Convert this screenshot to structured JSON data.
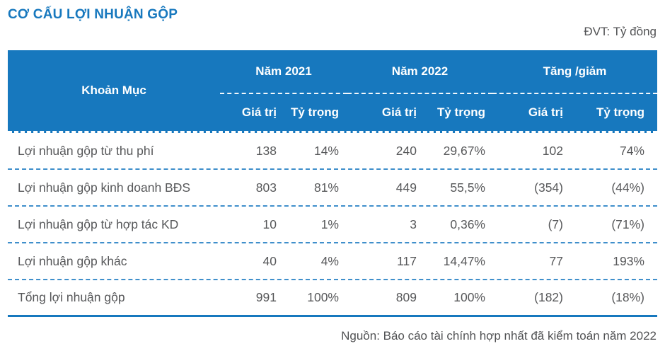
{
  "page": {
    "title": "CƠ CẤU LỢI NHUẬN GỘP",
    "unit_label": "ĐVT: Tỷ đồng",
    "source": "Nguồn: Báo cáo tài chính hợp nhất đã kiểm toán năm 2022"
  },
  "colors": {
    "header_bg": "#1778BE",
    "title_text": "#1778BE",
    "row_divider": "#3F8FCB",
    "bottom_border": "#1778BE",
    "body_text": "#57585A",
    "header_text": "#FFFFFF"
  },
  "table": {
    "header": {
      "item_col": "Khoản Mục",
      "groups": [
        {
          "label": "Năm 2021"
        },
        {
          "label": "Năm 2022"
        },
        {
          "label": "Tăng /giảm"
        }
      ],
      "sub_labels": [
        "Giá trị",
        "Tỷ trọng",
        "Giá trị",
        "Tỷ trọng",
        "Giá trị",
        "Tỷ trọng"
      ]
    },
    "rows": [
      {
        "label": "Lợi nhuận gộp từ thu phí",
        "values": [
          "138",
          "14%",
          "240",
          "29,67%",
          "102",
          "74%"
        ]
      },
      {
        "label": "Lợi nhuận gộp kinh doanh BĐS",
        "values": [
          "803",
          "81%",
          "449",
          "55,5%",
          "(354)",
          "(44%)"
        ]
      },
      {
        "label": "Lợi nhuận gộp từ hợp tác KD",
        "values": [
          "10",
          "1%",
          "3",
          "0,36%",
          "(7)",
          "(71%)"
        ]
      },
      {
        "label": "Lợi nhuận gộp khác",
        "values": [
          "40",
          "4%",
          "117",
          "14,47%",
          "77",
          "193%"
        ]
      },
      {
        "label": "Tổng lợi nhuận gộp",
        "values": [
          "991",
          "100%",
          "809",
          "100%",
          "(182)",
          "(18%)"
        ]
      }
    ]
  },
  "chart_data": {
    "type": "table",
    "title": "CƠ CẤU LỢI NHUẬN GỘP",
    "unit": "Tỷ đồng",
    "column_groups": [
      "Năm 2021",
      "Năm 2022",
      "Tăng /giảm"
    ],
    "sub_columns": [
      "Giá trị",
      "Tỷ trọng"
    ],
    "categories": [
      "Lợi nhuận gộp từ thu phí",
      "Lợi nhuận gộp kinh doanh BĐS",
      "Lợi nhuận gộp từ hợp tác KD",
      "Lợi nhuận gộp khác",
      "Tổng lợi nhuận gộp"
    ],
    "series": [
      {
        "name": "Năm 2021 Giá trị",
        "values": [
          138,
          803,
          10,
          40,
          991
        ]
      },
      {
        "name": "Năm 2021 Tỷ trọng",
        "values": [
          "14%",
          "81%",
          "1%",
          "4%",
          "100%"
        ]
      },
      {
        "name": "Năm 2022 Giá trị",
        "values": [
          240,
          449,
          3,
          117,
          809
        ]
      },
      {
        "name": "Năm 2022 Tỷ trọng",
        "values": [
          "29,67%",
          "55,5%",
          "0,36%",
          "14,47%",
          "100%"
        ]
      },
      {
        "name": "Tăng /giảm Giá trị",
        "values": [
          102,
          -354,
          -7,
          77,
          -182
        ]
      },
      {
        "name": "Tăng /giảm Tỷ trọng",
        "values": [
          "74%",
          "-44%",
          "-71%",
          "193%",
          "-18%"
        ]
      }
    ],
    "source": "Nguồn: Báo cáo tài chính hợp nhất đã kiểm toán năm 2022"
  }
}
